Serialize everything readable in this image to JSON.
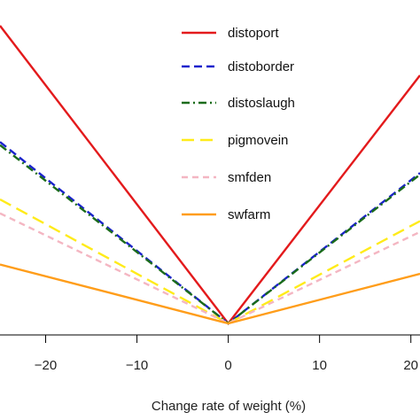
{
  "chart_data": {
    "type": "line",
    "xlabel": "Change rate of weight (%)",
    "ylabel": "",
    "xlim": [
      -25,
      21
    ],
    "ylim": [
      0,
      100
    ],
    "x_ticks": [
      -20,
      -10,
      0,
      10,
      20
    ],
    "x_tick_labels": [
      "−20",
      "−10",
      "0",
      "10",
      "20"
    ],
    "grid": false,
    "legend_position": "top-center",
    "series": [
      {
        "name": "distoport",
        "color": "#e31a1c",
        "dash": "solid",
        "x": [
          -25,
          0,
          21
        ],
        "y": [
          96,
          0,
          80
        ]
      },
      {
        "name": "distoborder",
        "color": "#1a22cc",
        "dash": "dashed",
        "x": [
          -25,
          0,
          21
        ],
        "y": [
          58.5,
          0,
          48.5
        ]
      },
      {
        "name": "distoslaugh",
        "color": "#1a6b1a",
        "dash": "dashdot",
        "x": [
          -25,
          0,
          21
        ],
        "y": [
          57.5,
          0,
          48
        ]
      },
      {
        "name": "pigmovein",
        "color": "#ffeb1a",
        "dash": "longdash",
        "x": [
          -25,
          0,
          21
        ],
        "y": [
          40,
          0,
          33
        ]
      },
      {
        "name": "smfden",
        "color": "#f4b6c2",
        "dash": "shortdash",
        "x": [
          -25,
          0,
          21
        ],
        "y": [
          35.5,
          0,
          29.5
        ]
      },
      {
        "name": "swfarm",
        "color": "#ff9d1a",
        "dash": "solid",
        "x": [
          -25,
          0,
          21
        ],
        "y": [
          19,
          0,
          16
        ]
      }
    ]
  }
}
